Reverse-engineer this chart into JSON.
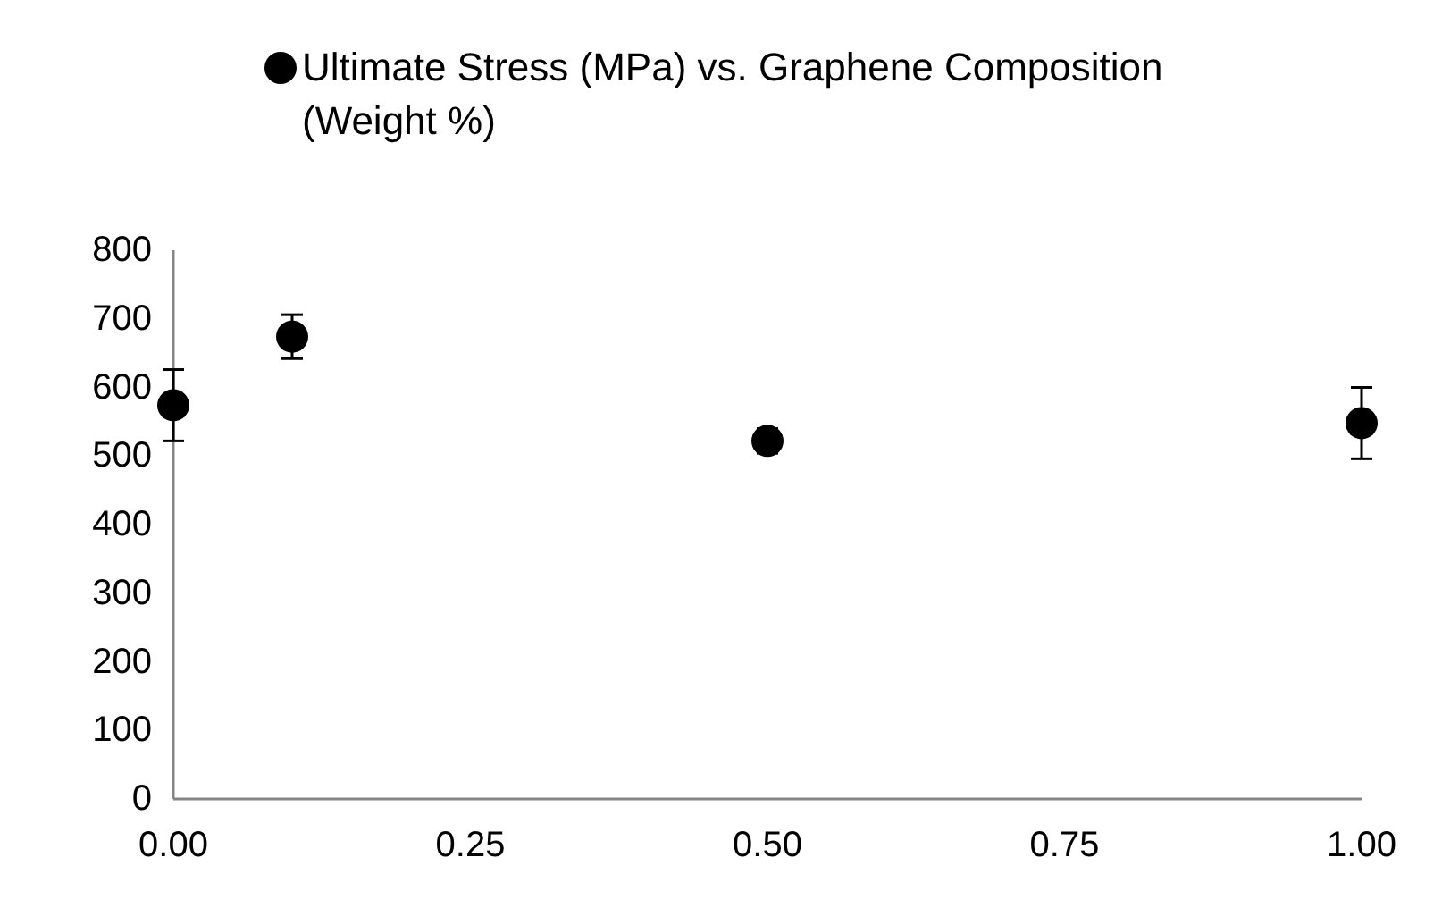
{
  "chart_data": {
    "type": "scatter",
    "x": [
      0,
      0.1,
      0.5,
      1
    ],
    "series": [
      {
        "name": "Ultimate Stress (MPa) vs. Graphene Composition (Weight %)",
        "color": "#000000",
        "values": [
          574,
          674,
          522,
          548
        ],
        "errors": [
          52,
          32,
          18,
          52
        ]
      }
    ],
    "xlim": [
      0,
      1
    ],
    "xticks": [
      {
        "value": 0,
        "label": "0.00"
      },
      {
        "value": 0.25,
        "label": "0.25"
      },
      {
        "value": 0.5,
        "label": "0.50"
      },
      {
        "value": 0.75,
        "label": "0.75"
      },
      {
        "value": 1,
        "label": "1.00"
      }
    ],
    "ylim": [
      0,
      800
    ],
    "yticks": [
      0,
      100,
      200,
      300,
      400,
      500,
      600,
      700,
      800
    ],
    "grid": false,
    "legend": "top",
    "marker": "circle"
  }
}
